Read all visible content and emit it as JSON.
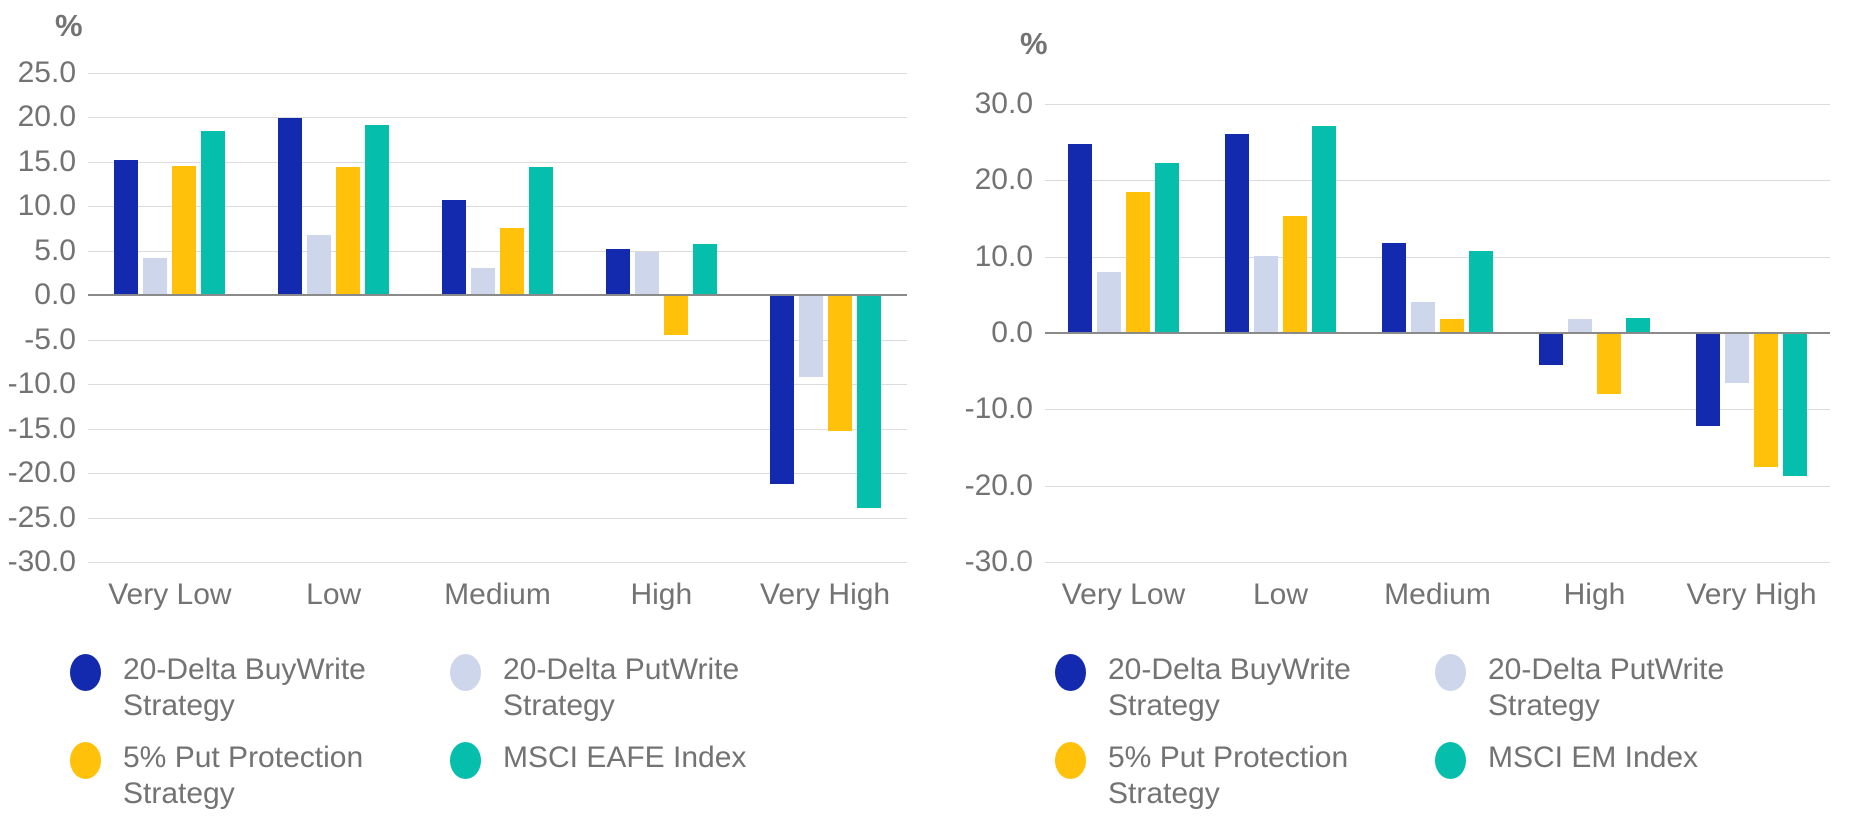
{
  "style": {
    "text_color": "#737373",
    "grid_color": "#DCDCDC",
    "axis_line_color": "#8A8A8A",
    "background_color": "#FFFFFF"
  },
  "chart_data": [
    {
      "type": "bar",
      "title": "",
      "percent_label": "%",
      "ylabel": "%",
      "xlabel": "",
      "grid": true,
      "legend_position": "bottom",
      "ylim": [
        -30,
        25
      ],
      "categories": [
        "Very Low",
        "Low",
        "Medium",
        "High",
        "Very High"
      ],
      "y_ticks": [
        {
          "value": 25,
          "label": "25.0"
        },
        {
          "value": 20,
          "label": "20.0"
        },
        {
          "value": 15,
          "label": "15.0"
        },
        {
          "value": 10,
          "label": "10.0"
        },
        {
          "value": 5,
          "label": "5.0"
        },
        {
          "value": 0,
          "label": "0.0"
        },
        {
          "value": -5,
          "label": "-5.0"
        },
        {
          "value": -10,
          "label": "-10.0"
        },
        {
          "value": -15,
          "label": "-15.0"
        },
        {
          "value": -20,
          "label": "-20.0"
        },
        {
          "value": -25,
          "label": "-25.0"
        },
        {
          "value": -30,
          "label": "-30.0"
        }
      ],
      "series": [
        {
          "name": "20-Delta BuyWrite Strategy",
          "color": "#1329AE",
          "values": [
            15.2,
            19.9,
            10.7,
            5.2,
            -21.2
          ]
        },
        {
          "name": "20-Delta PutWrite Strategy",
          "color": "#CED6EC",
          "values": [
            4.2,
            6.8,
            3.1,
            4.9,
            -9.2
          ]
        },
        {
          "name": "5% Put Protection Strategy",
          "color": "#FFC10A",
          "values": [
            14.5,
            14.4,
            7.6,
            -4.5,
            -15.3
          ]
        },
        {
          "name": "MSCI EAFE Index",
          "color": "#05BEAC",
          "values": [
            18.5,
            19.2,
            14.4,
            5.8,
            -23.9
          ]
        }
      ]
    },
    {
      "type": "bar",
      "title": "",
      "percent_label": "%",
      "ylabel": "%",
      "xlabel": "",
      "grid": true,
      "legend_position": "bottom",
      "ylim": [
        -30,
        30
      ],
      "categories": [
        "Very Low",
        "Low",
        "Medium",
        "High",
        "Very High"
      ],
      "y_ticks": [
        {
          "value": 30,
          "label": "30.0"
        },
        {
          "value": 20,
          "label": "20.0"
        },
        {
          "value": 10,
          "label": "10.0"
        },
        {
          "value": 0,
          "label": "0.0"
        },
        {
          "value": -10,
          "label": "-10.0"
        },
        {
          "value": -20,
          "label": "-20.0"
        },
        {
          "value": -30,
          "label": "-30.0"
        }
      ],
      "series": [
        {
          "name": "20-Delta BuyWrite Strategy",
          "color": "#1329AE",
          "values": [
            24.8,
            26.1,
            11.8,
            -4.2,
            -12.2
          ]
        },
        {
          "name": "20-Delta PutWrite Strategy",
          "color": "#CED6EC",
          "values": [
            8.0,
            10.1,
            4.1,
            1.8,
            -6.6
          ]
        },
        {
          "name": "5% Put Protection Strategy",
          "color": "#FFC10A",
          "values": [
            18.5,
            15.3,
            1.8,
            -8.0,
            -17.5
          ]
        },
        {
          "name": "MSCI EM Index",
          "color": "#05BEAC",
          "values": [
            22.3,
            27.1,
            10.8,
            2.0,
            -18.7
          ]
        }
      ]
    }
  ]
}
